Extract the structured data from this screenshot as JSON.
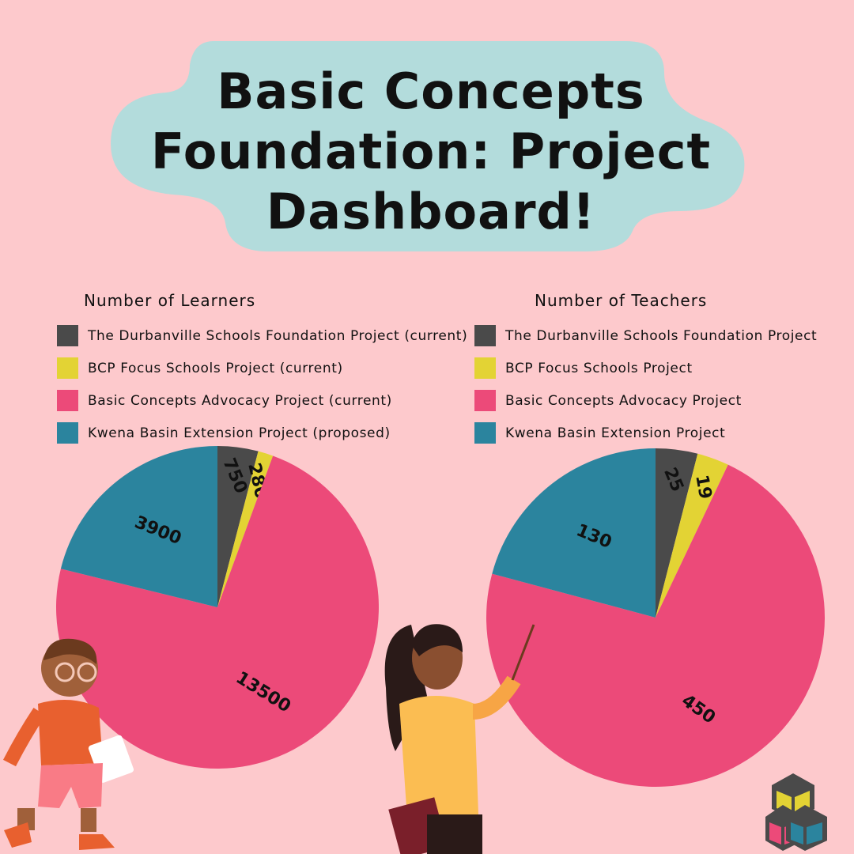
{
  "title": "Basic Concepts Foundation: Project Dashboard!",
  "colors": {
    "background": "#fdc9cc",
    "title_bubble": "#b3dcdc",
    "dark": "#4a4a4a",
    "yellow": "#e3d334",
    "pink": "#ec4a79",
    "teal": "#2b849e"
  },
  "chart_data": [
    {
      "type": "pie",
      "title": "Number of Learners",
      "categories": [
        "The Durbanville Schools Foundation Project (current)",
        "BCP Focus Schools Project (current)",
        "Basic Concepts Advocacy Project (current)",
        "Kwena Basin Extension Project (proposed)"
      ],
      "values": [
        750,
        280,
        13500,
        3900
      ],
      "labels": [
        "750",
        "280",
        "13500",
        "3900"
      ],
      "colors": [
        "#4a4a4a",
        "#e3d334",
        "#ec4a79",
        "#2b849e"
      ],
      "legend": "top"
    },
    {
      "type": "pie",
      "title": "Number of Teachers",
      "categories": [
        "The Durbanville Schools Foundation Project",
        "BCP Focus Schools Project",
        "Basic Concepts Advocacy Project",
        "Kwena Basin Extension Project"
      ],
      "values": [
        25,
        19,
        450,
        130
      ],
      "labels": [
        "25",
        "19",
        "450",
        "130"
      ],
      "colors": [
        "#4a4a4a",
        "#e3d334",
        "#ec4a79",
        "#2b849e"
      ],
      "legend": "top"
    }
  ],
  "illustrations": [
    "boy-with-book",
    "teacher-with-pointer",
    "cubes-logo"
  ]
}
